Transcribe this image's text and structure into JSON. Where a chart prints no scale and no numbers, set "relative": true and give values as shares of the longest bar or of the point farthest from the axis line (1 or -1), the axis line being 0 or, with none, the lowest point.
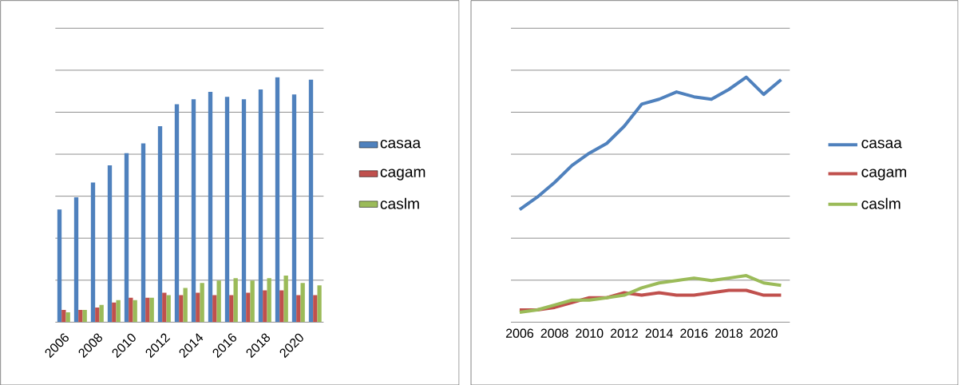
{
  "chart_data": [
    {
      "type": "bar",
      "relative": true,
      "grid": "y",
      "legend": "right",
      "categories": [
        "2006",
        null,
        "2008",
        null,
        "2010",
        null,
        "2012",
        null,
        "2014",
        null,
        "2016",
        null,
        "2018",
        null,
        "2020",
        null
      ],
      "series": [
        {
          "name": "casaa",
          "color": "#4f81bd",
          "values": [
            0.46,
            0.51,
            0.57,
            0.64,
            0.69,
            0.73,
            0.8,
            0.89,
            0.91,
            0.94,
            0.92,
            0.91,
            0.95,
            1,
            0.93,
            0.99
          ]
        },
        {
          "name": "cagam",
          "color": "#c0504d",
          "values": [
            0.05,
            0.05,
            0.06,
            0.08,
            0.1,
            0.1,
            0.12,
            0.11,
            0.12,
            0.11,
            0.11,
            0.12,
            0.13,
            0.13,
            0.11,
            0.11
          ]
        },
        {
          "name": "caslm",
          "color": "#9bbb59",
          "values": [
            0.04,
            0.05,
            0.07,
            0.09,
            0.09,
            0.1,
            0.11,
            0.14,
            0.16,
            0.17,
            0.18,
            0.17,
            0.18,
            0.19,
            0.16,
            0.15
          ]
        }
      ]
    },
    {
      "type": "line",
      "relative": true,
      "grid": "y",
      "legend": "right",
      "categories": [
        "2006",
        null,
        "2008",
        null,
        "2010",
        null,
        "2012",
        null,
        "2014",
        null,
        "2016",
        null,
        "2018",
        null,
        "2020",
        null
      ],
      "series": [
        {
          "name": "casaa",
          "color": "#4f81bd",
          "values": [
            0.46,
            0.51,
            0.57,
            0.64,
            0.69,
            0.73,
            0.8,
            0.89,
            0.91,
            0.94,
            0.92,
            0.91,
            0.95,
            1,
            0.93,
            0.99
          ]
        },
        {
          "name": "cagam",
          "color": "#c0504d",
          "values": [
            0.05,
            0.05,
            0.06,
            0.08,
            0.1,
            0.1,
            0.12,
            0.11,
            0.12,
            0.11,
            0.11,
            0.12,
            0.13,
            0.13,
            0.11,
            0.11
          ]
        },
        {
          "name": "caslm",
          "color": "#9bbb59",
          "values": [
            0.04,
            0.05,
            0.07,
            0.09,
            0.09,
            0.1,
            0.11,
            0.14,
            0.16,
            0.17,
            0.18,
            0.17,
            0.18,
            0.19,
            0.16,
            0.15
          ]
        }
      ]
    }
  ]
}
